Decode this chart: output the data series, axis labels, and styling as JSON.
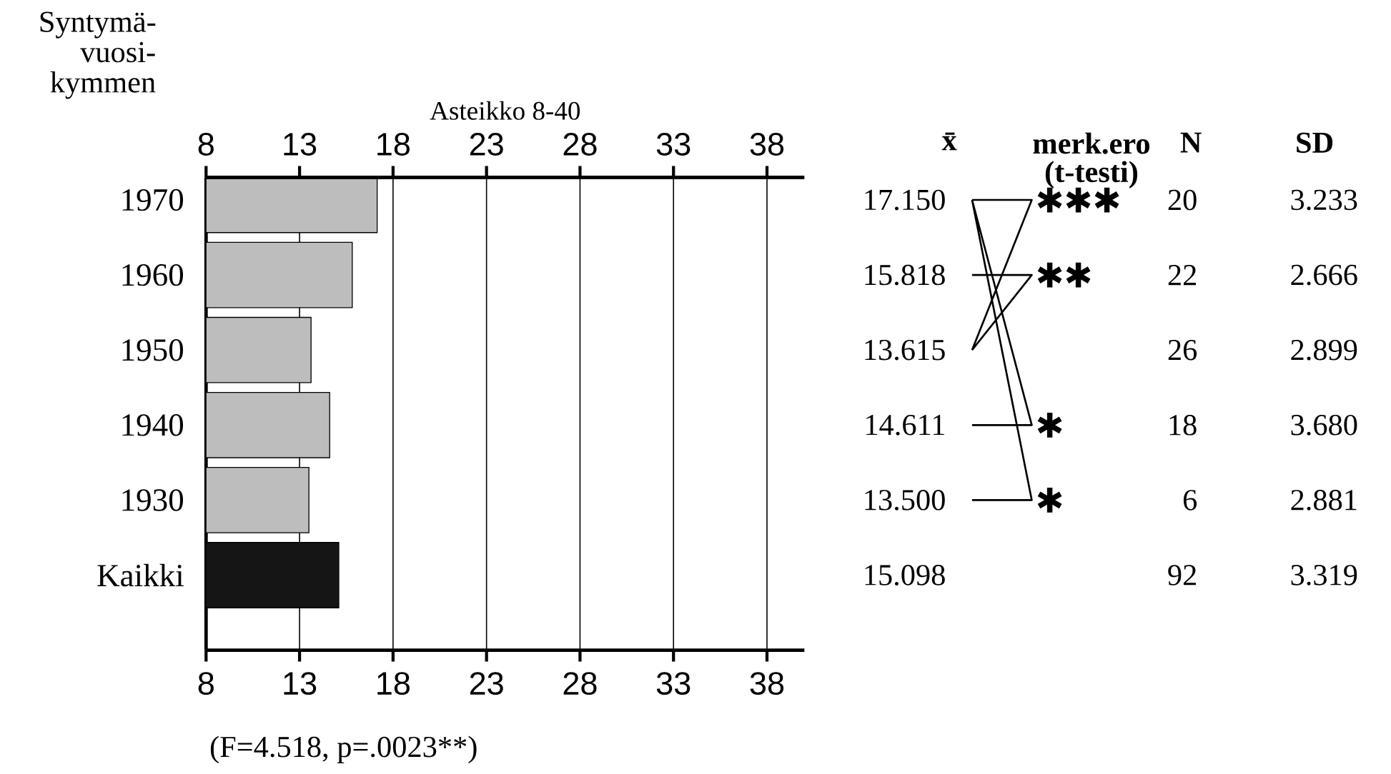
{
  "chart_data": {
    "type": "bar",
    "orientation": "horizontal",
    "ylabel": "Syntymä- vuosi- kymmen",
    "x2label": "Asteikko 8-40",
    "categories": [
      "1970",
      "1960",
      "1950",
      "1940",
      "1930",
      "Kaikki"
    ],
    "values": [
      17.15,
      15.818,
      13.615,
      14.611,
      13.5,
      15.098
    ],
    "value_labels": [
      "17.150",
      "15.818",
      "13.615",
      "14.611",
      "13.500",
      "15.098"
    ],
    "colors": [
      "#bdbdbd",
      "#bdbdbd",
      "#bdbdbd",
      "#bdbdbd",
      "#bdbdbd",
      "#151515"
    ],
    "xlim": [
      8,
      40
    ],
    "xticks": [
      8,
      13,
      18,
      23,
      28,
      33,
      38
    ],
    "x2lim": [
      8,
      40
    ],
    "x2ticks": [
      8,
      13,
      18,
      23,
      28,
      33,
      38
    ],
    "grid": "x",
    "annotations": [
      "(F=4.518, p=.0023**)",
      "x̄",
      "merk.ero (t-testi)",
      "N",
      "SD",
      "✱✱✱",
      "✱✱",
      "✱",
      "✱",
      "20",
      "22",
      "26",
      "18",
      "6",
      "92",
      "3.233",
      "2.666",
      "2.899",
      "3.680",
      "2.881",
      "3.319"
    ]
  }
}
